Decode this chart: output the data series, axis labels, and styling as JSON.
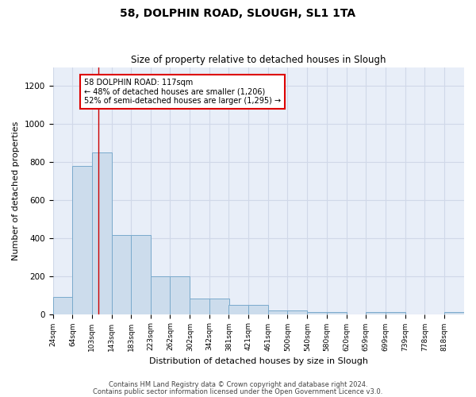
{
  "title": "58, DOLPHIN ROAD, SLOUGH, SL1 1TA",
  "subtitle": "Size of property relative to detached houses in Slough",
  "xlabel": "Distribution of detached houses by size in Slough",
  "ylabel": "Number of detached properties",
  "footnote1": "Contains HM Land Registry data © Crown copyright and database right 2024.",
  "footnote2": "Contains public sector information licensed under the Open Government Licence v3.0.",
  "bar_edges": [
    24,
    64,
    103,
    143,
    183,
    223,
    262,
    302,
    342,
    381,
    421,
    461,
    500,
    540,
    580,
    620,
    659,
    699,
    739,
    778,
    818
  ],
  "bar_heights": [
    90,
    780,
    850,
    415,
    415,
    200,
    200,
    80,
    80,
    50,
    50,
    20,
    20,
    10,
    10,
    0,
    10,
    10,
    0,
    0,
    10
  ],
  "bar_color": "#ccdcec",
  "bar_edge_color": "#7aaacc",
  "grid_color": "#d0d8e8",
  "background_color": "#e8eef8",
  "fig_background": "#ffffff",
  "annotation_box_color": "#dd0000",
  "marker_line_color": "#cc0000",
  "marker_value": 117,
  "annotation_text_line1": "58 DOLPHIN ROAD: 117sqm",
  "annotation_text_line2": "← 48% of detached houses are smaller (1,206)",
  "annotation_text_line3": "52% of semi-detached houses are larger (1,295) →",
  "ylim": [
    0,
    1300
  ],
  "yticks": [
    0,
    200,
    400,
    600,
    800,
    1000,
    1200
  ],
  "tick_labels": [
    "24sqm",
    "64sqm",
    "103sqm",
    "143sqm",
    "183sqm",
    "223sqm",
    "262sqm",
    "302sqm",
    "342sqm",
    "381sqm",
    "421sqm",
    "461sqm",
    "500sqm",
    "540sqm",
    "580sqm",
    "620sqm",
    "659sqm",
    "699sqm",
    "739sqm",
    "778sqm",
    "818sqm"
  ]
}
